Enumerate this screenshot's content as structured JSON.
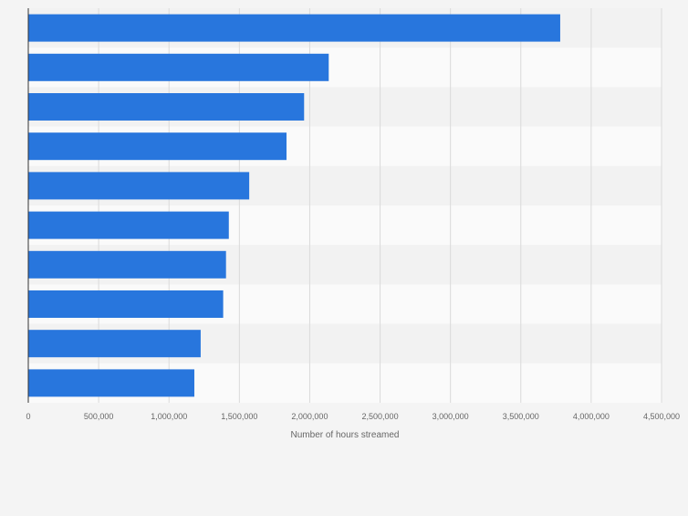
{
  "chart_data": {
    "type": "bar",
    "orientation": "horizontal",
    "title": "",
    "xlabel": "Number of hours streamed",
    "ylabel": "",
    "categories": [
      "",
      "",
      "",
      "",
      "",
      "",
      "",
      "",
      "",
      ""
    ],
    "values": [
      3780000,
      2135000,
      1960000,
      1835000,
      1570000,
      1425000,
      1405000,
      1385000,
      1225000,
      1180000
    ],
    "xlim": [
      0,
      4500000
    ],
    "xticks": [
      0,
      500000,
      1000000,
      1500000,
      2000000,
      2500000,
      3000000,
      3500000,
      4000000,
      4500000
    ],
    "xtick_labels": [
      "0",
      "500,000",
      "1,000,000",
      "1,500,000",
      "2,000,000",
      "2,500,000",
      "3,000,000",
      "3,500,000",
      "4,000,000",
      "4,500,000"
    ],
    "grid": true,
    "legend": "none",
    "colors": {
      "bar": "#2876dd",
      "band_light": "#fafafa",
      "band_dark": "#f2f2f2",
      "background": "#f4f4f4",
      "grid": "#dadada",
      "axis": "#333333",
      "tick_text": "#666666"
    }
  }
}
